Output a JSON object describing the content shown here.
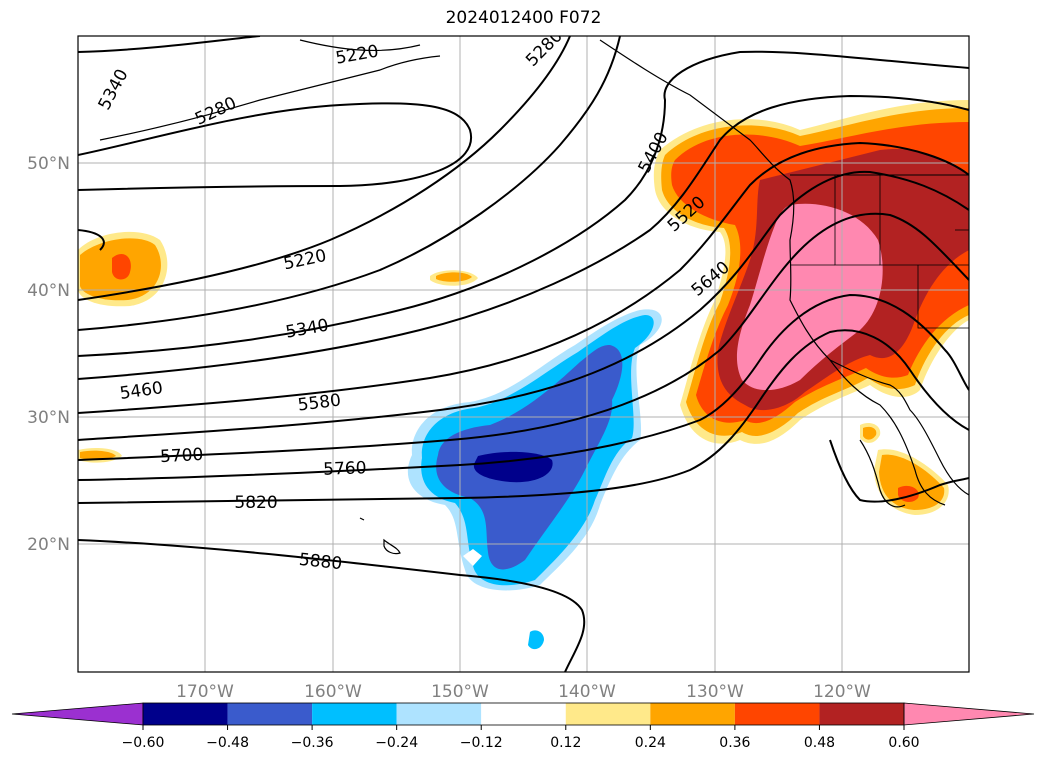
{
  "title": "2024012400 F072",
  "map": {
    "lat_labels": [
      "50°N",
      "40°N",
      "30°N",
      "20°N"
    ],
    "lon_labels": [
      "170°W",
      "160°W",
      "150°W",
      "140°W",
      "130°W",
      "120°W"
    ],
    "gridlines": true,
    "contour_levels": [
      "5340",
      "5280",
      "5220",
      "5280",
      "5400",
      "5520",
      "5640",
      "5220",
      "5340",
      "5460",
      "5580",
      "5700",
      "5760",
      "5820",
      "5880"
    ]
  },
  "colorbar": {
    "ticks": [
      "−0.60",
      "−0.48",
      "−0.36",
      "−0.24",
      "−0.12",
      "0.12",
      "0.24",
      "0.36",
      "0.48",
      "0.60"
    ],
    "colors": [
      "#9b30d0",
      "#00008b",
      "#3a5bcc",
      "#00bfff",
      "#aee3ff",
      "#ffffff",
      "#ffe98a",
      "#ffa500",
      "#ff4500",
      "#b22222",
      "#ff88b0",
      "#ff88b0"
    ],
    "extend": "both"
  }
}
